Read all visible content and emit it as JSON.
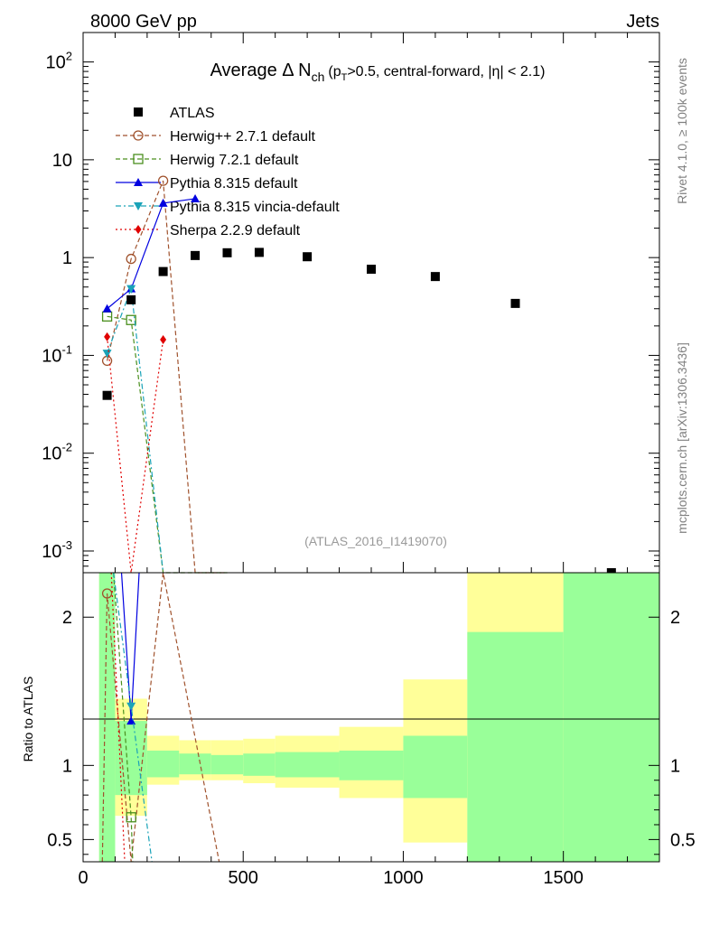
{
  "header": {
    "left": "8000 GeV pp",
    "right": "Jets"
  },
  "title": {
    "prefix": "Average",
    "delta": "Δ",
    "n": "N",
    "n_sub": "ch",
    "open": "(p",
    "pt_sub": "T",
    "rest": ">0.5, central-forward, |η| < 2.1)"
  },
  "side_labels": {
    "rivet": "Rivet 4.1.0, ≥ 100k events",
    "mcplots": "mcplots.cern.ch [arXiv:1306.3436]"
  },
  "watermark": "(ATLAS_2016_I1419070)",
  "ratio_ylabel": "Ratio to ATLAS",
  "colors": {
    "atlas": "#000000",
    "herwigpp": "#a0522d",
    "herwig7": "#4a8f1e",
    "pythia": "#0000e0",
    "vincia": "#1aa3b8",
    "sherpa": "#e00000",
    "band_yellow": "#ffff99",
    "band_green": "#99ff99"
  },
  "chart_data": {
    "type": "scatter",
    "xlim": [
      0,
      1800
    ],
    "ylim_main": [
      0.0006,
      200
    ],
    "yscale_main": "log",
    "ylim_ratio": [
      0.35,
      2.3
    ],
    "x_ticks": [
      0,
      500,
      1000,
      1500
    ],
    "main_ytick_labels": [
      {
        "value": 0.001,
        "base": "10",
        "exp": "-3"
      },
      {
        "value": 0.01,
        "base": "10",
        "exp": "-2"
      },
      {
        "value": 0.1,
        "base": "10",
        "exp": "-1"
      },
      {
        "value": 1,
        "base": "1",
        "exp": ""
      },
      {
        "value": 10,
        "base": "10",
        "exp": ""
      },
      {
        "value": 100,
        "base": "10",
        "exp": "2"
      }
    ],
    "ratio_ytick_labels": [
      {
        "value": 0.5,
        "label": "0.5"
      },
      {
        "value": 1,
        "label": "1"
      },
      {
        "value": 2,
        "label": "2"
      }
    ],
    "data": {
      "name": "ATLAS",
      "x": [
        75,
        150,
        250,
        350,
        450,
        550,
        700,
        900,
        1100,
        1350,
        1650
      ],
      "y": [
        0.039,
        0.37,
        0.72,
        1.05,
        1.12,
        1.13,
        1.02,
        0.76,
        0.64,
        0.34,
        0.0006
      ]
    },
    "series": [
      {
        "name": "Herwig++ 2.7.1 default",
        "color_key": "herwigpp",
        "style": "dashed",
        "marker": "circle-open",
        "x": [
          75,
          150,
          250,
          350,
          450
        ],
        "y": [
          0.088,
          0.97,
          6.1,
          0.0006,
          0.0006
        ]
      },
      {
        "name": "Herwig 7.2.1 default",
        "color_key": "herwig7",
        "style": "dashed",
        "marker": "square-open",
        "x": [
          75,
          150,
          250,
          350,
          450
        ],
        "y": [
          0.25,
          0.23,
          0.0006,
          0.0006,
          0.0006
        ]
      },
      {
        "name": "Pythia 8.315 default",
        "color_key": "pythia",
        "style": "solid",
        "marker": "triangle-up",
        "x": [
          75,
          150,
          250,
          350
        ],
        "y": [
          0.3,
          0.48,
          3.6,
          4.0
        ]
      },
      {
        "name": "Pythia 8.315 vincia-default",
        "color_key": "vincia",
        "style": "dashdot",
        "marker": "triangle-down",
        "x": [
          75,
          150,
          250
        ],
        "y": [
          0.105,
          0.48,
          0.0006
        ]
      },
      {
        "name": "Sherpa 2.2.9 default",
        "color_key": "sherpa",
        "style": "dotted",
        "marker": "diamond",
        "x": [
          75,
          150,
          250
        ],
        "y": [
          0.155,
          0.0006,
          0.145
        ]
      }
    ],
    "ratio_bands": [
      {
        "x0": 50,
        "x1": 100,
        "yellow": [
          0.35,
          2.3
        ],
        "green": [
          0.35,
          2.3
        ]
      },
      {
        "x0": 100,
        "x1": 200,
        "yellow": [
          0.66,
          1.45
        ],
        "green": [
          0.8,
          1.3
        ]
      },
      {
        "x0": 200,
        "x1": 300,
        "yellow": [
          0.87,
          1.2
        ],
        "green": [
          0.92,
          1.1
        ]
      },
      {
        "x0": 300,
        "x1": 400,
        "yellow": [
          0.9,
          1.17
        ],
        "green": [
          0.94,
          1.08
        ]
      },
      {
        "x0": 400,
        "x1": 500,
        "yellow": [
          0.9,
          1.17
        ],
        "green": [
          0.94,
          1.07
        ]
      },
      {
        "x0": 500,
        "x1": 600,
        "yellow": [
          0.88,
          1.18
        ],
        "green": [
          0.93,
          1.08
        ]
      },
      {
        "x0": 600,
        "x1": 800,
        "yellow": [
          0.85,
          1.2
        ],
        "green": [
          0.92,
          1.09
        ]
      },
      {
        "x0": 800,
        "x1": 1000,
        "yellow": [
          0.78,
          1.26
        ],
        "green": [
          0.9,
          1.1
        ]
      },
      {
        "x0": 1000,
        "x1": 1200,
        "yellow": [
          0.48,
          1.58
        ],
        "green": [
          0.78,
          1.2
        ]
      },
      {
        "x0": 1200,
        "x1": 1500,
        "yellow": [
          0.35,
          2.3
        ],
        "green": [
          0.35,
          1.9
        ]
      },
      {
        "x0": 1500,
        "x1": 1800,
        "yellow": [
          0.35,
          2.3
        ],
        "green": [
          0.35,
          2.3
        ]
      }
    ],
    "ratio_series": [
      {
        "color_key": "herwigpp",
        "style": "dashed",
        "marker": "circle-open",
        "x": [
          60,
          75,
          150,
          250,
          425
        ],
        "y": [
          0.35,
          2.16,
          0.35,
          2.3,
          0.35
        ]
      },
      {
        "color_key": "herwig7",
        "style": "dashed",
        "marker": "square-open",
        "x": [
          95,
          150,
          155
        ],
        "y": [
          2.3,
          0.65,
          0.35
        ]
      },
      {
        "color_key": "pythia",
        "style": "solid",
        "marker": "triangle-up",
        "x": [
          120,
          150,
          175
        ],
        "y": [
          2.3,
          1.3,
          2.3
        ]
      },
      {
        "color_key": "vincia",
        "style": "dashdot",
        "marker": "triangle-down",
        "x": [
          95,
          150,
          215
        ],
        "y": [
          2.3,
          1.4,
          0.35
        ]
      },
      {
        "color_key": "sherpa",
        "style": "dotted",
        "marker": "diamond",
        "x": [
          88,
          130
        ],
        "y": [
          2.3,
          0.35
        ]
      }
    ]
  }
}
